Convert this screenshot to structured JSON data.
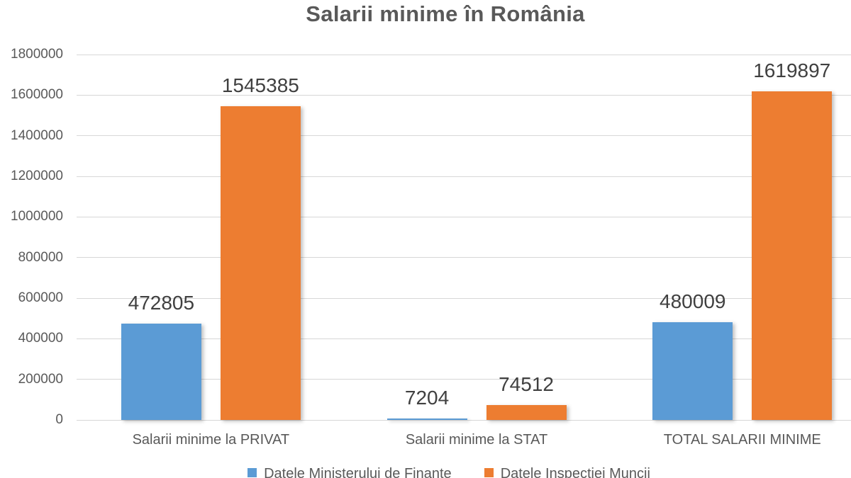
{
  "chart_data": {
    "type": "bar",
    "title": "Salarii minime în România",
    "categories": [
      "Salarii minime la PRIVAT",
      "Salarii minime la STAT",
      "TOTAL SALARII MINIME"
    ],
    "series": [
      {
        "name": "Datele Ministerului de Finante",
        "color": "#5B9BD5",
        "values": [
          472805,
          7204,
          480009
        ]
      },
      {
        "name": "Datele Inspectiei Muncii",
        "color": "#ED7D31",
        "values": [
          1545385,
          74512,
          1619897
        ]
      }
    ],
    "data_labels": [
      "472805",
      "1545385",
      "7204",
      "74512",
      "480009",
      "1619897"
    ],
    "ylim": [
      0,
      1800000
    ],
    "ytick_interval": 200000,
    "ytick_labels": [
      "0",
      "200000",
      "400000",
      "600000",
      "800000",
      "1000000",
      "1200000",
      "1400000",
      "1600000",
      "1800000"
    ],
    "grid": true,
    "legend_position": "bottom",
    "colors": {
      "series1": "#5B9BD5",
      "series2": "#ED7D31",
      "gridline": "#D7D7D7",
      "title_text": "#595959",
      "axis_text": "#595959",
      "value_text": "#404040"
    }
  }
}
